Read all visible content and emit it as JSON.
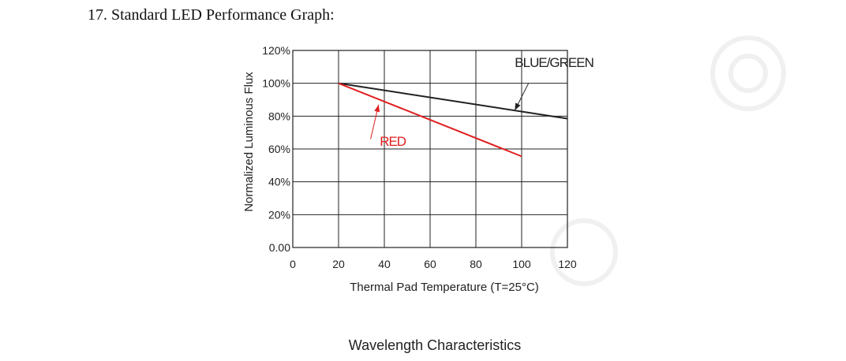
{
  "heading": "17. Standard LED Performance Graph:",
  "chart_data": {
    "type": "line",
    "title": "Wavelength Characteristics",
    "xlabel": "Thermal Pad Temperature (T=25°C)",
    "ylabel": "Normalized Luminous Flux",
    "xlim": [
      0,
      120
    ],
    "ylim": [
      0,
      120
    ],
    "x_ticks": [
      0,
      20,
      40,
      60,
      80,
      100,
      120
    ],
    "x_tick_labels": [
      "0",
      "20",
      "40",
      "60",
      "80",
      "100",
      "120"
    ],
    "y_ticks": [
      0,
      20,
      40,
      60,
      80,
      100,
      120
    ],
    "y_tick_labels": [
      "0.00",
      "20%",
      "40%",
      "60%",
      "80%",
      "100%",
      "120%"
    ],
    "grid": true,
    "series": [
      {
        "name": "BLUE/GREEN",
        "color": "#222222",
        "x": [
          20,
          120
        ],
        "y": [
          100,
          78.5
        ],
        "annotation": {
          "text": "BLUE/GREEN",
          "text_at": [
            97,
            110
          ],
          "arrow_to": [
            97,
            83.5
          ],
          "arrow_from": [
            103,
            100
          ]
        }
      },
      {
        "name": "RED",
        "color": "#e02020",
        "x": [
          20,
          100
        ],
        "y": [
          100,
          55.5
        ],
        "annotation": {
          "text": "RED",
          "text_at": [
            38,
            62
          ],
          "arrow_to": [
            37.5,
            87
          ],
          "arrow_from": [
            34,
            66
          ]
        }
      }
    ]
  },
  "colors": {
    "grid": "#222222",
    "text": "#222222"
  }
}
